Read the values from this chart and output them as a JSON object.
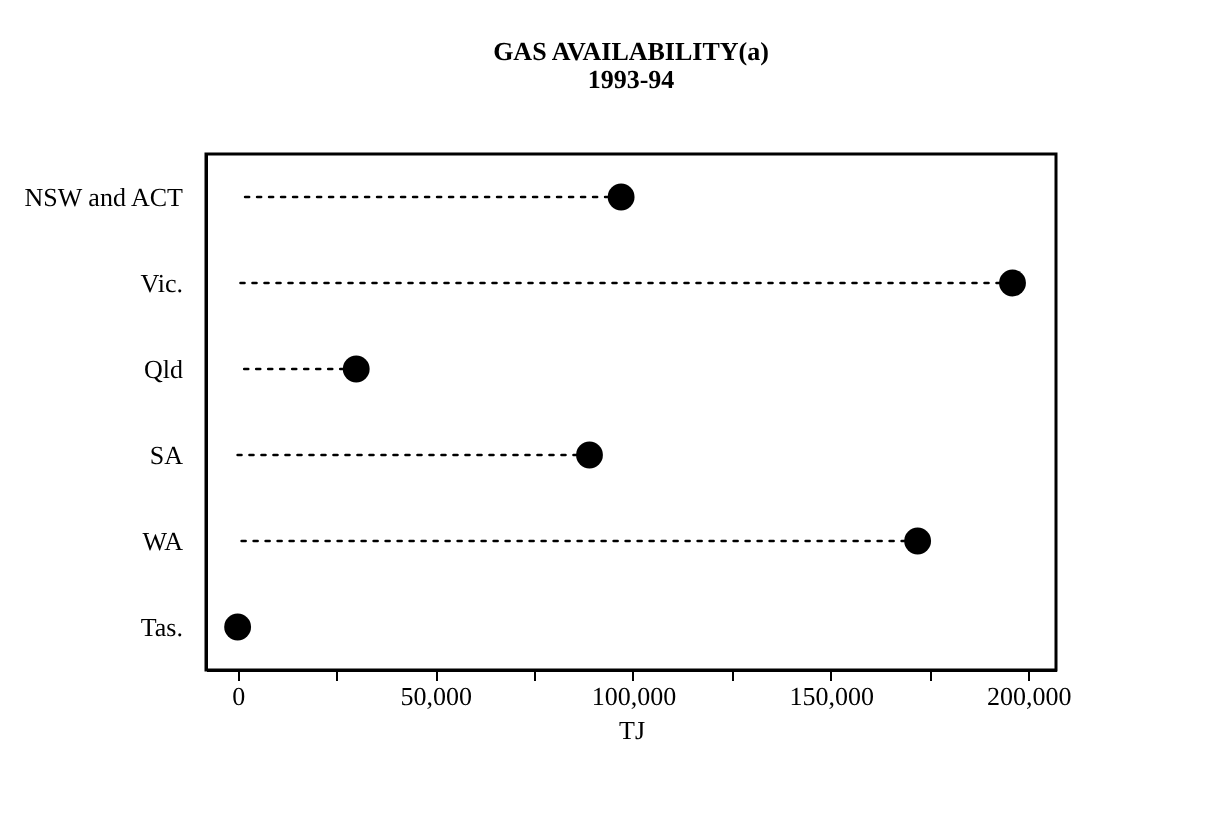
{
  "chart_data": {
    "type": "lollipop",
    "orientation": "horizontal",
    "title": "GAS AVAILABILITY(a)",
    "subtitle": "1993-94",
    "xlabel": "TJ",
    "categories": [
      "NSW and ACT",
      "Vic.",
      "Qld",
      "SA",
      "WA",
      "Tas."
    ],
    "values": [
      97000,
      196000,
      30000,
      89000,
      172000,
      0
    ],
    "color": "#000000",
    "marker": "circle",
    "line_style": "dotted",
    "xlim": [
      -8000,
      207000
    ],
    "xticks": [
      0,
      {
        "value": 25000,
        "label": null
      },
      {
        "value": 50000,
        "label": "50,000"
      },
      {
        "value": 75000,
        "label": null
      },
      {
        "value": 100000,
        "label": "100,000"
      },
      {
        "value": 125000,
        "label": null
      },
      {
        "value": 150000,
        "label": "150,000"
      },
      {
        "value": 175000,
        "label": null
      },
      {
        "value": 200000,
        "label": "200,000"
      }
    ],
    "grid": false
  }
}
